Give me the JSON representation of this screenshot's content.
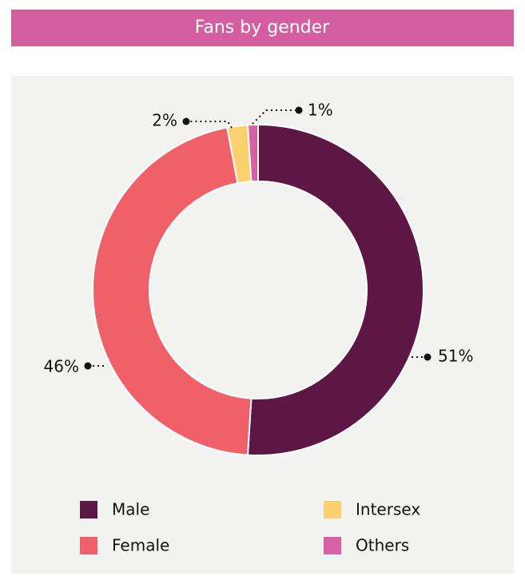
{
  "chart_data": {
    "type": "donut",
    "title": "Fans by gender",
    "categories": [
      "Male",
      "Female",
      "Intersex",
      "Others"
    ],
    "values": [
      51,
      46,
      2,
      1
    ],
    "value_labels": [
      "51%",
      "46%",
      "2%",
      "1%"
    ],
    "colors": [
      "#5c1745",
      "#ef6069",
      "#fdd06e",
      "#d661a6"
    ],
    "legend": "bottom"
  }
}
